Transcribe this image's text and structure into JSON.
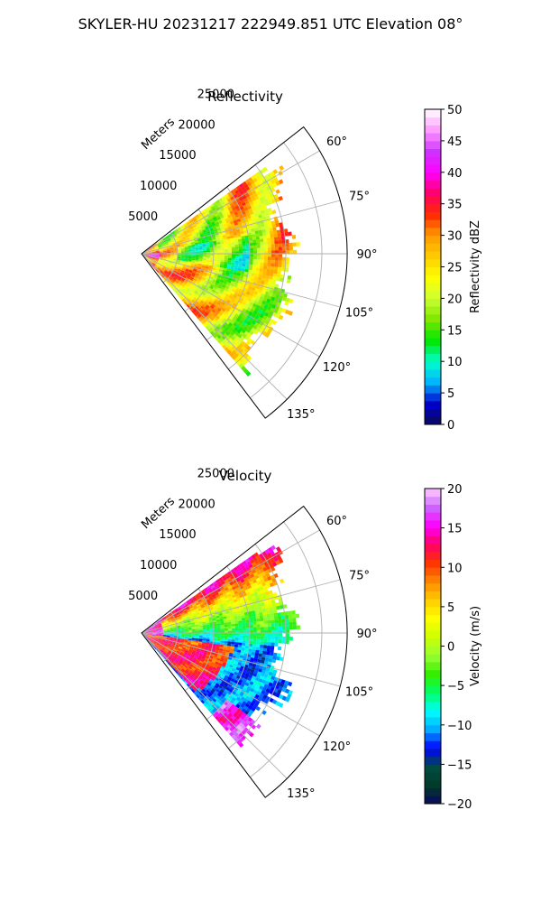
{
  "suptitle": "SKYLER-HU  20231217  222949.851 UTC Elevation 08°",
  "chart_data": [
    {
      "type": "heatmap",
      "title": "Reflectivity",
      "radial_label": "Meters",
      "radial_ticks": [
        "5000",
        "10000",
        "15000",
        "20000",
        "25000"
      ],
      "angle_ticks": [
        "60°",
        "75°",
        "90°",
        "105°",
        "120°",
        "135°"
      ],
      "grid": true,
      "colorbar": {
        "label": "Reflectivity dBZ",
        "ticks": [
          "0",
          "5",
          "10",
          "15",
          "20",
          "25",
          "30",
          "35",
          "40",
          "45",
          "50"
        ],
        "range": [
          0,
          50
        ],
        "colors": [
          "#0a0a5a",
          "#0000cc",
          "#00b4ff",
          "#00ffcc",
          "#00e600",
          "#7ee600",
          "#ccff33",
          "#ffff00",
          "#ffcc00",
          "#ff9900",
          "#ff2a00",
          "#ff0066",
          "#ff00ff",
          "#cc33ff",
          "#ff99ff",
          "#ffffff"
        ]
      }
    },
    {
      "type": "heatmap",
      "title": "Velocity",
      "radial_label": "Meters",
      "radial_ticks": [
        "5000",
        "10000",
        "15000",
        "20000",
        "25000"
      ],
      "angle_ticks": [
        "60°",
        "75°",
        "90°",
        "105°",
        "120°",
        "135°"
      ],
      "grid": true,
      "colorbar": {
        "label": "Velocity (m/s)",
        "ticks": [
          "−20",
          "−15",
          "−10",
          "−5",
          "0",
          "5",
          "10",
          "15",
          "20"
        ],
        "range": [
          -20,
          20
        ],
        "colors": [
          "#0a0a5a",
          "#003b2a",
          "#004d40",
          "#0000ff",
          "#00aaff",
          "#00ffff",
          "#00ff66",
          "#33ee00",
          "#99ff33",
          "#ccff00",
          "#ffff00",
          "#ffcc00",
          "#ff8800",
          "#ff3300",
          "#ff0066",
          "#ff00ff",
          "#cc66ff",
          "#ffccff"
        ]
      }
    }
  ]
}
